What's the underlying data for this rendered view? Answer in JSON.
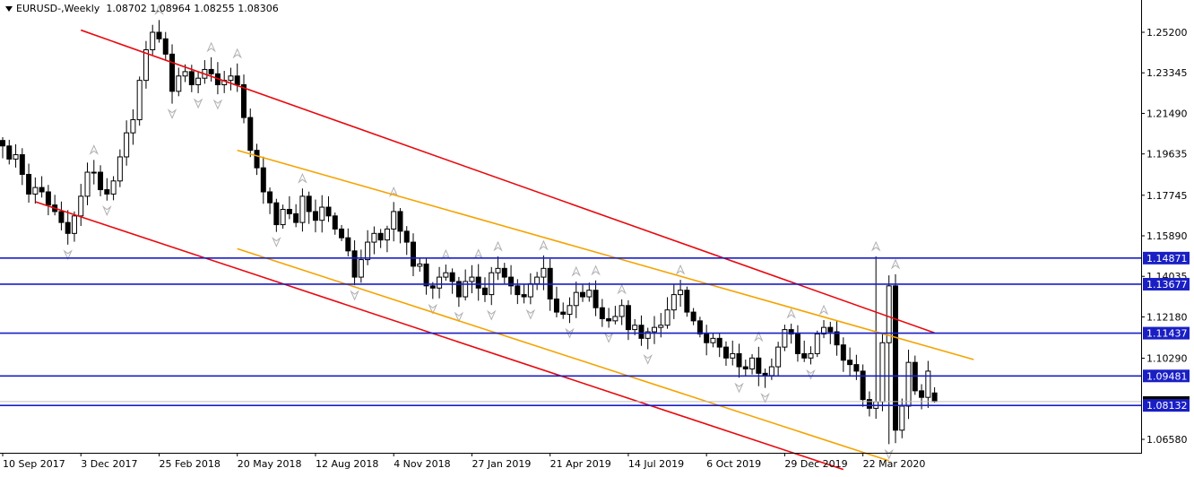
{
  "header": {
    "symbol_label": "EURUSD-,Weekly",
    "ohlc": "1.08702 1.08964 1.08255 1.08306"
  },
  "colors": {
    "background": "#ffffff",
    "candle_border": "#000000",
    "bull_fill": "#ffffff",
    "bear_fill": "#000000",
    "outer_channel": "#e8090e",
    "inner_channel": "#f5a300",
    "horizontal_levels": "#1a1fc4",
    "level_label_bg": "#1a1fc4",
    "level_label_text": "#ffffff",
    "fractal_arrow": "#b0b0b0",
    "current_price_line": "#c0c0c0"
  },
  "chart_data": {
    "type": "candlestick",
    "title": "EURUSD-,Weekly",
    "timeframe": "Weekly",
    "ohlc_last": {
      "open": 1.08702,
      "high": 1.08964,
      "low": 1.08255,
      "close": 1.08306
    },
    "ylim": [
      1.0565,
      1.2645
    ],
    "y_ticks": [
      "1.25200",
      "1.23345",
      "1.21490",
      "1.19635",
      "1.17745",
      "1.15890",
      "1.14035",
      "1.12180",
      "1.10290",
      "1.06580"
    ],
    "x_ticks": [
      "10 Sep 2017",
      "3 Dec 2017",
      "25 Feb 2018",
      "20 May 2018",
      "12 Aug 2018",
      "4 Nov 2018",
      "27 Jan 2019",
      "21 Apr 2019",
      "14 Jul 2019",
      "6 Oct 2019",
      "29 Dec 2019",
      "22 Mar 2020"
    ],
    "horizontal_levels": [
      1.14871,
      1.13677,
      1.11437,
      1.09481,
      1.08132
    ],
    "level_labels": [
      "1.14871",
      "1.13677",
      "1.11437",
      "1.09481",
      "1.08132"
    ],
    "current_price": 1.08306,
    "outer_channel_upper": {
      "from": [
        "3 Dec 2017",
        1.253
      ],
      "to": [
        "7 Jun 2020",
        1.1145
      ]
    },
    "outer_channel_lower": {
      "from": [
        "15 Oct 2017",
        1.1745
      ],
      "to": [
        "1 Mar 2020",
        1.052
      ]
    },
    "inner_channel_upper": {
      "from": [
        "20 May 2018",
        1.198
      ],
      "to": [
        "19 Jul 2020",
        1.1023
      ]
    },
    "inner_channel_lower": {
      "from": [
        "20 May 2018",
        1.153
      ],
      "to": [
        "19 Apr 2020",
        1.056
      ]
    },
    "closes": [
      1.2,
      1.194,
      1.196,
      1.187,
      1.178,
      1.181,
      1.179,
      1.173,
      1.17,
      1.165,
      1.16,
      1.168,
      1.177,
      1.188,
      1.188,
      1.18,
      1.178,
      1.184,
      1.195,
      1.206,
      1.212,
      1.23,
      1.244,
      1.252,
      1.249,
      1.242,
      1.225,
      1.232,
      1.234,
      1.228,
      1.231,
      1.235,
      1.233,
      1.228,
      1.23,
      1.232,
      1.228,
      1.213,
      1.198,
      1.19,
      1.179,
      1.174,
      1.164,
      1.171,
      1.169,
      1.165,
      1.177,
      1.17,
      1.166,
      1.172,
      1.168,
      1.162,
      1.158,
      1.152,
      1.14,
      1.148,
      1.156,
      1.16,
      1.157,
      1.162,
      1.17,
      1.161,
      1.156,
      1.145,
      1.146,
      1.136,
      1.135,
      1.14,
      1.142,
      1.138,
      1.131,
      1.138,
      1.14,
      1.135,
      1.132,
      1.142,
      1.144,
      1.14,
      1.136,
      1.132,
      1.131,
      1.137,
      1.14,
      1.144,
      1.13,
      1.124,
      1.123,
      1.127,
      1.133,
      1.131,
      1.134,
      1.126,
      1.121,
      1.12,
      1.122,
      1.127,
      1.116,
      1.118,
      1.112,
      1.115,
      1.117,
      1.118,
      1.125,
      1.132,
      1.134,
      1.124,
      1.12,
      1.114,
      1.11,
      1.112,
      1.108,
      1.103,
      1.105,
      1.099,
      1.098,
      1.103,
      1.096,
      1.095,
      1.099,
      1.108,
      1.116,
      1.114,
      1.105,
      1.103,
      1.105,
      1.114,
      1.117,
      1.115,
      1.109,
      1.102,
      1.1,
      1.097,
      1.084,
      1.08,
      1.083,
      1.11,
      1.136,
      1.07,
      1.081,
      1.101,
      1.088,
      1.085,
      1.097,
      1.083
    ],
    "timestamp_note": "weekly bars from 10 Sep 2017 to Apr 2020"
  }
}
